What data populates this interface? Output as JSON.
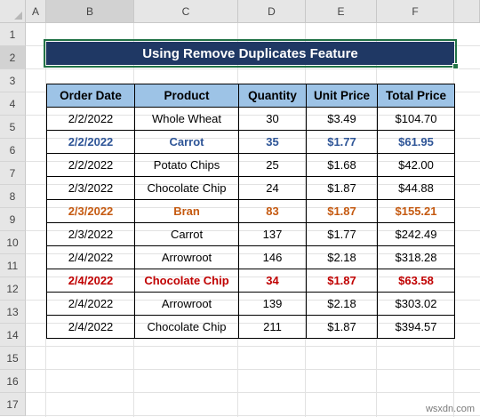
{
  "columns": [
    "A",
    "B",
    "C",
    "D",
    "E",
    "F"
  ],
  "rows": [
    "1",
    "2",
    "3",
    "4",
    "5",
    "6",
    "7",
    "8",
    "9",
    "10",
    "11",
    "12",
    "13",
    "14",
    "15",
    "16",
    "17"
  ],
  "title": "Using Remove Duplicates Feature",
  "table": {
    "headers": [
      "Order Date",
      "Product",
      "Quantity",
      "Unit Price",
      "Total Price"
    ],
    "rows": [
      {
        "cells": [
          "2/2/2022",
          "Whole Wheat",
          "30",
          "$3.49",
          "$104.70"
        ],
        "highlight": "none"
      },
      {
        "cells": [
          "2/2/2022",
          "Carrot",
          "35",
          "$1.77",
          "$61.95"
        ],
        "highlight": "blue"
      },
      {
        "cells": [
          "2/2/2022",
          "Potato Chips",
          "25",
          "$1.68",
          "$42.00"
        ],
        "highlight": "none"
      },
      {
        "cells": [
          "2/3/2022",
          "Chocolate Chip",
          "24",
          "$1.87",
          "$44.88"
        ],
        "highlight": "none"
      },
      {
        "cells": [
          "2/3/2022",
          "Bran",
          "83",
          "$1.87",
          "$155.21"
        ],
        "highlight": "orange"
      },
      {
        "cells": [
          "2/3/2022",
          "Carrot",
          "137",
          "$1.77",
          "$242.49"
        ],
        "highlight": "none"
      },
      {
        "cells": [
          "2/4/2022",
          "Arrowroot",
          "146",
          "$2.18",
          "$318.28"
        ],
        "highlight": "none"
      },
      {
        "cells": [
          "2/4/2022",
          "Chocolate Chip",
          "34",
          "$1.87",
          "$63.58"
        ],
        "highlight": "red"
      },
      {
        "cells": [
          "2/4/2022",
          "Arrowroot",
          "139",
          "$2.18",
          "$303.02"
        ],
        "highlight": "none"
      },
      {
        "cells": [
          "2/4/2022",
          "Chocolate Chip",
          "211",
          "$1.87",
          "$394.57"
        ],
        "highlight": "none"
      }
    ]
  },
  "colors": {
    "title_bg": "#1f3864",
    "header_bg": "#9dc3e6",
    "highlight_blue": "#2e5597",
    "highlight_orange": "#c55a11",
    "highlight_red": "#c00000",
    "selection": "#217346"
  },
  "selected_cell": {
    "column": "B",
    "row": "2"
  },
  "watermark": "wsxdn.com"
}
